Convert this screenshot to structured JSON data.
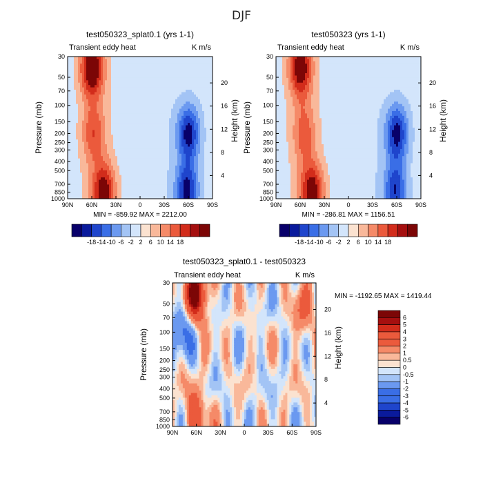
{
  "page_title": "DJF",
  "chart_data": [
    {
      "type": "heatmap",
      "title": "test050323_splat0.1 (yrs 1-1)",
      "subtitle_left": "Transient eddy heat",
      "subtitle_right": "K m/s",
      "xlabel": "",
      "ylabel": "Pressure (mb)",
      "ylabel_right": "Height (km)",
      "x_ticks": [
        "90N",
        "60N",
        "30N",
        "0",
        "30S",
        "60S",
        "90S"
      ],
      "x_range": [
        90,
        -90
      ],
      "y_ticks": [
        "30",
        "50",
        "70",
        "100",
        "150",
        "200",
        "250",
        "300",
        "400",
        "500",
        "700",
        "850",
        "1000"
      ],
      "y_range_mb": [
        30,
        1000
      ],
      "y_right_ticks": [
        "20",
        "16",
        "12",
        "8",
        "4"
      ],
      "stats": "MIN = -859.92   MAX = 2212.00",
      "colorbar_labels": [
        "-18",
        "-14",
        "-10",
        "-6",
        "-2",
        "2",
        "6",
        "10",
        "14",
        "18"
      ],
      "features": [
        {
          "lat": 60,
          "p": 40,
          "value": 22,
          "note": "positive core upper"
        },
        {
          "lat": 45,
          "p": 840,
          "value": 20,
          "note": "positive core lower"
        },
        {
          "lat": 58,
          "p": 200,
          "value": 11,
          "note": "positive upper-mid"
        },
        {
          "lat": -60,
          "p": 200,
          "value": -20,
          "note": "negative core upper"
        },
        {
          "lat": -58,
          "p": 830,
          "value": -20,
          "note": "negative core lower"
        }
      ]
    },
    {
      "type": "heatmap",
      "title": "test050323 (yrs 1-1)",
      "subtitle_left": "Transient eddy heat",
      "subtitle_right": "K m/s",
      "xlabel": "",
      "ylabel": "Pressure (mb)",
      "ylabel_right": "Height (km)",
      "x_ticks": [
        "90N",
        "60N",
        "30N",
        "0",
        "30S",
        "60S",
        "90S"
      ],
      "x_range": [
        90,
        -90
      ],
      "y_ticks": [
        "30",
        "50",
        "70",
        "100",
        "150",
        "200",
        "250",
        "300",
        "400",
        "500",
        "700",
        "850",
        "1000"
      ],
      "y_range_mb": [
        30,
        1000
      ],
      "y_right_ticks": [
        "20",
        "16",
        "12",
        "8",
        "4"
      ],
      "stats": "MIN = -286.81   MAX = 1156.51",
      "colorbar_labels": [
        "-18",
        "-14",
        "-10",
        "-6",
        "-2",
        "2",
        "6",
        "10",
        "14",
        "18"
      ],
      "features": [
        {
          "lat": 60,
          "p": 40,
          "value": 20,
          "note": "positive core upper"
        },
        {
          "lat": 45,
          "p": 840,
          "value": 20,
          "note": "positive core lower"
        },
        {
          "lat": 55,
          "p": 200,
          "value": 10,
          "note": "positive upper-mid"
        },
        {
          "lat": -60,
          "p": 200,
          "value": -20,
          "note": "negative core upper"
        },
        {
          "lat": -58,
          "p": 830,
          "value": -18,
          "note": "negative core lower"
        }
      ]
    },
    {
      "type": "heatmap",
      "title": "test050323_splat0.1 - test050323",
      "subtitle_left": "Transient eddy heat",
      "subtitle_right": "K m/s",
      "xlabel": "",
      "ylabel": "Pressure (mb)",
      "ylabel_right": "Height (km)",
      "x_ticks": [
        "90N",
        "60N",
        "30N",
        "0",
        "30S",
        "60S",
        "90S"
      ],
      "x_range": [
        90,
        -90
      ],
      "y_ticks": [
        "30",
        "50",
        "70",
        "100",
        "150",
        "200",
        "250",
        "300",
        "400",
        "500",
        "700",
        "850",
        "1000"
      ],
      "y_range_mb": [
        30,
        1000
      ],
      "y_right_ticks": [
        "20",
        "16",
        "12",
        "8",
        "4"
      ],
      "stats": "MIN = -1192.65   MAX = 1419.44",
      "colorbar_labels": [
        "6",
        "5",
        "4",
        "3",
        "2",
        "1",
        "0.5",
        "0",
        "-0.5",
        "-1",
        "-2",
        "-3",
        "-4",
        "-5",
        "-6"
      ],
      "features": [
        {
          "lat": 62,
          "p": 40,
          "value": 7,
          "note": "positive core upper"
        },
        {
          "lat": 75,
          "p": 80,
          "value": -3,
          "note": "negative band polar"
        },
        {
          "lat": 60,
          "p": 800,
          "value": 3,
          "note": "positive lower"
        },
        {
          "lat": -75,
          "p": 60,
          "value": 2,
          "note": "positive SH upper"
        }
      ]
    }
  ],
  "colors": {
    "diverging": [
      "#08006a",
      "#0a1a9c",
      "#1f45cc",
      "#3a6ee6",
      "#6b99f0",
      "#a3c4f5",
      "#d3e5fb",
      "#fbe2d0",
      "#f9b89a",
      "#f58a68",
      "#eb5a3c",
      "#d22c1b",
      "#a50f0f",
      "#7c0606"
    ]
  }
}
